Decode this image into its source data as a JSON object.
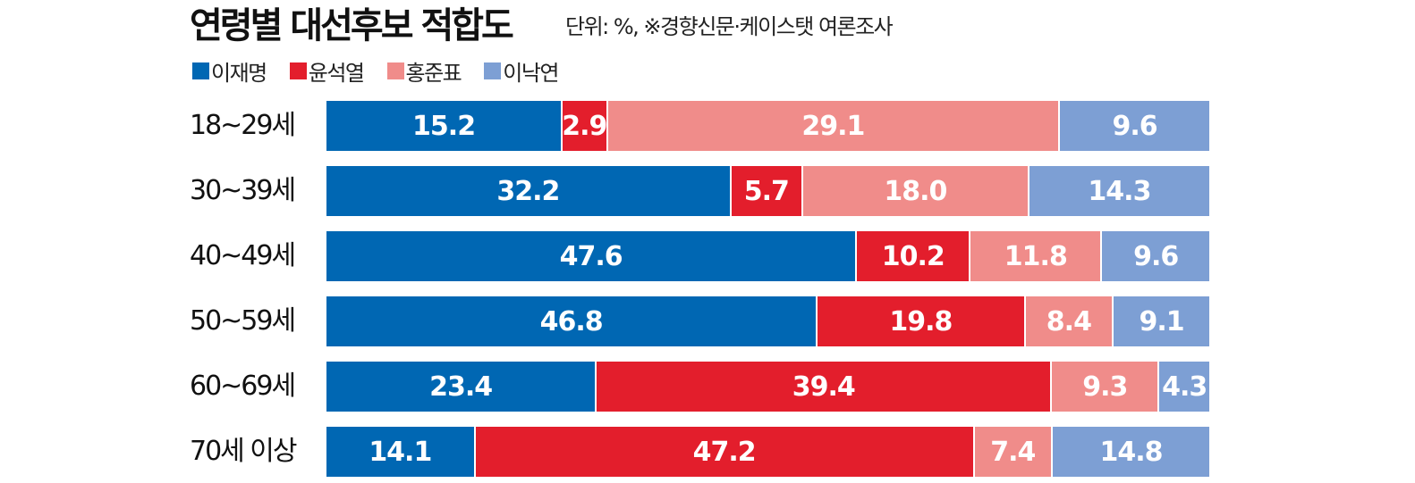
{
  "chart_data": {
    "type": "bar",
    "orientation": "horizontal-stacked-normalized",
    "title": "연령별 대선후보 적합도",
    "subtitle": "단위: %, ※경향신문·케이스탯 여론조사",
    "categories": [
      "18~29세",
      "30~39세",
      "40~49세",
      "50~59세",
      "60~69세",
      "70세 이상"
    ],
    "series": [
      {
        "name": "이재명",
        "color": "#0067b3",
        "values": [
          15.2,
          32.2,
          47.6,
          46.8,
          23.4,
          14.1
        ]
      },
      {
        "name": "윤석열",
        "color": "#e31e2c",
        "values": [
          2.9,
          5.7,
          10.2,
          19.8,
          39.4,
          47.2
        ]
      },
      {
        "name": "홍준표",
        "color": "#f08c8a",
        "values": [
          29.1,
          18.0,
          11.8,
          8.4,
          9.3,
          7.4
        ]
      },
      {
        "name": "이낙연",
        "color": "#7d9fd4",
        "values": [
          9.6,
          14.3,
          9.6,
          9.1,
          4.3,
          14.8
        ]
      }
    ],
    "legend": "top-left"
  }
}
